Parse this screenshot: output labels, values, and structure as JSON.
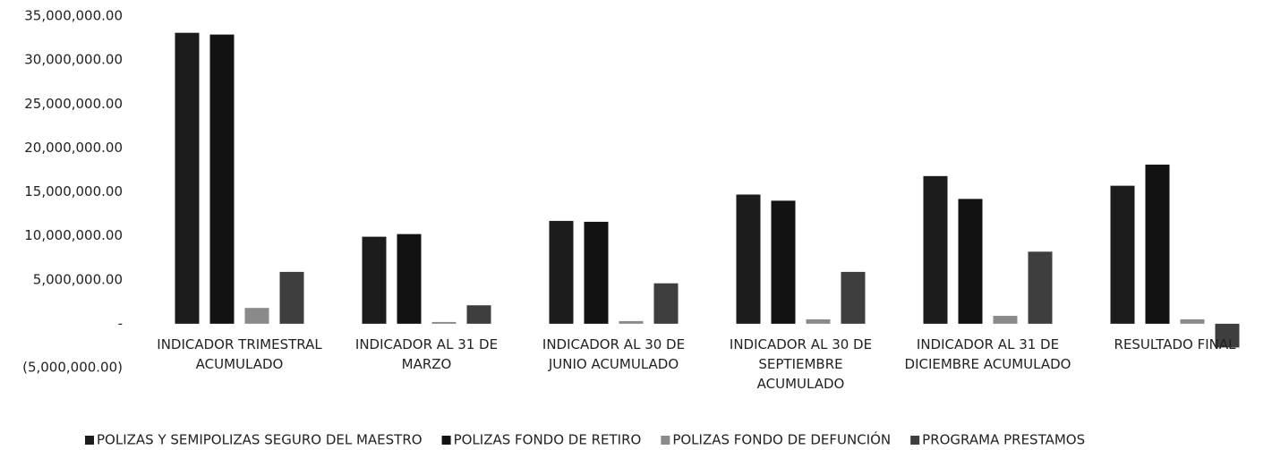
{
  "chart_data": {
    "type": "bar",
    "categories": [
      "INDICADOR TRIMESTRAL ACUMULADO",
      "INDICADOR AL 31 DE MARZO",
      "INDICADOR AL 30 DE JUNIO ACUMULADO",
      "INDICADOR AL 30 DE SEPTIEMBRE ACUMULADO",
      "INDICADOR AL 31 DE DICIEMBRE ACUMULADO",
      "RESULTADO FINAL"
    ],
    "series": [
      {
        "name": "POLIZAS Y SEMIPOLIZAS SEGURO DEL MAESTRO",
        "color": "#1c1c1c",
        "values": [
          33100000,
          9900000,
          11700000,
          14700000,
          16800000,
          15700000
        ]
      },
      {
        "name": "POLIZAS FONDO DE RETIRO",
        "color": "#121212",
        "values": [
          32900000,
          10200000,
          11600000,
          14000000,
          14200000,
          18100000
        ]
      },
      {
        "name": "POLIZAS FONDO DE DEFUNCIÓN",
        "color": "#8a8a8a",
        "values": [
          1800000,
          200000,
          300000,
          500000,
          900000,
          500000
        ]
      },
      {
        "name": "PROGRAMA PRESTAMOS",
        "color": "#3e3e3e",
        "values": [
          5900000,
          2100000,
          4600000,
          5900000,
          8200000,
          -2700000
        ]
      }
    ],
    "ylim": [
      -5000000,
      35000000
    ],
    "yticks": [
      {
        "value": -5000000,
        "label": "(5,000,000.00)"
      },
      {
        "value": 0,
        "label": "-"
      },
      {
        "value": 5000000,
        "label": "5,000,000.00"
      },
      {
        "value": 10000000,
        "label": "10,000,000.00"
      },
      {
        "value": 15000000,
        "label": "15,000,000.00"
      },
      {
        "value": 20000000,
        "label": "20,000,000.00"
      },
      {
        "value": 25000000,
        "label": "25,000,000.00"
      },
      {
        "value": 30000000,
        "label": "30,000,000.00"
      },
      {
        "value": 35000000,
        "label": "35,000,000.00"
      }
    ],
    "grid": false,
    "legend": "bottom"
  }
}
